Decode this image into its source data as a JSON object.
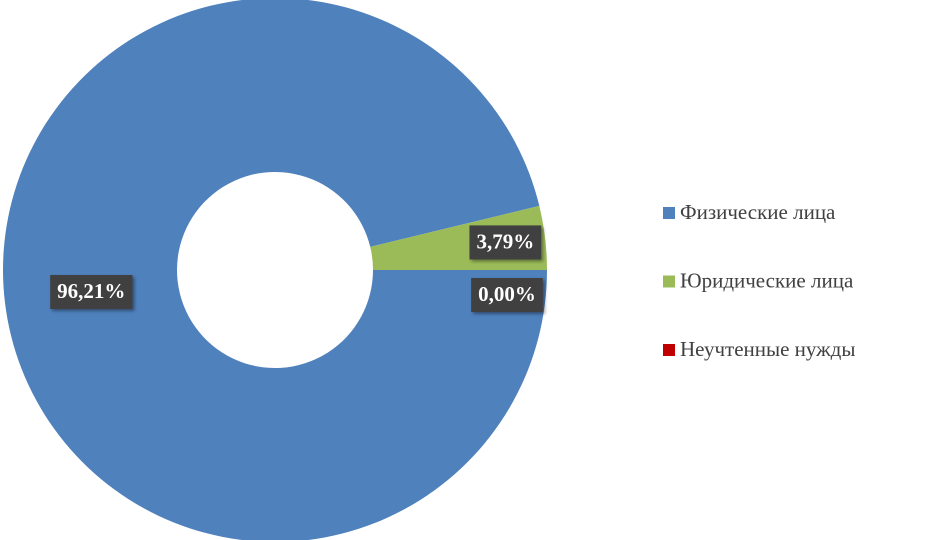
{
  "chart_data": {
    "type": "donut",
    "categories": [
      "Физические лица",
      "Юридические лица",
      "Неучтенные нужды"
    ],
    "values": [
      96.21,
      3.79,
      0.0
    ],
    "value_labels": [
      "96,21%",
      "3,79%",
      "0,00%"
    ],
    "colors": [
      "#4f81bd",
      "#9bbb59",
      "#c00000"
    ],
    "legend": "right"
  }
}
